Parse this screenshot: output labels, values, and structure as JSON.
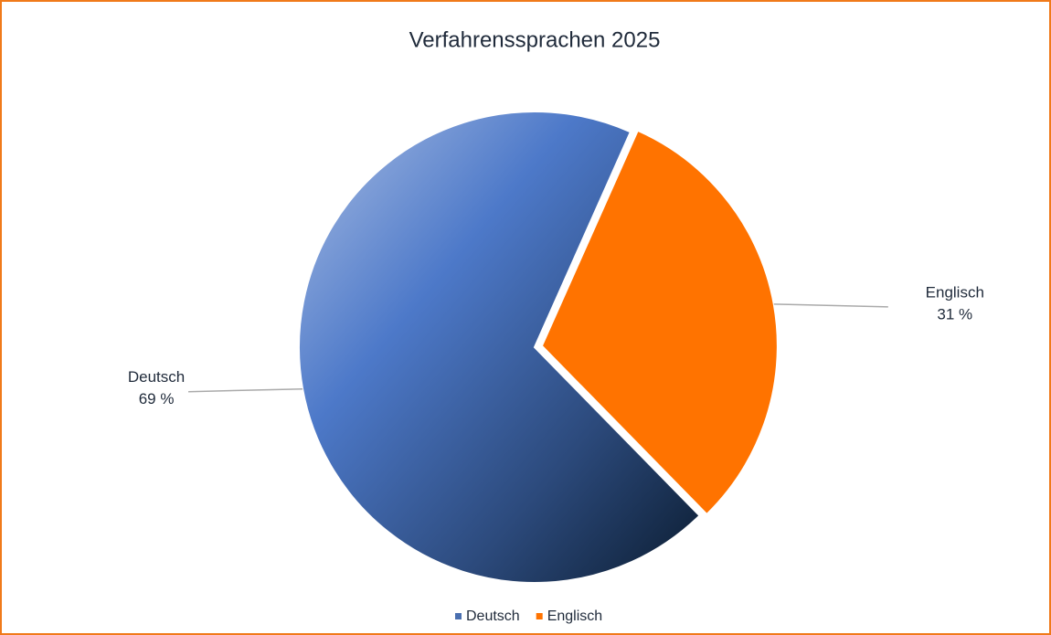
{
  "chart_data": {
    "type": "pie",
    "title": "Verfahrenssprachen 2025",
    "categories": [
      "Deutsch",
      "Englisch"
    ],
    "values": [
      69,
      31
    ],
    "value_labels": [
      "69 %",
      "31 %"
    ],
    "colors": [
      "#4a72bf",
      "#ff7300"
    ]
  }
}
